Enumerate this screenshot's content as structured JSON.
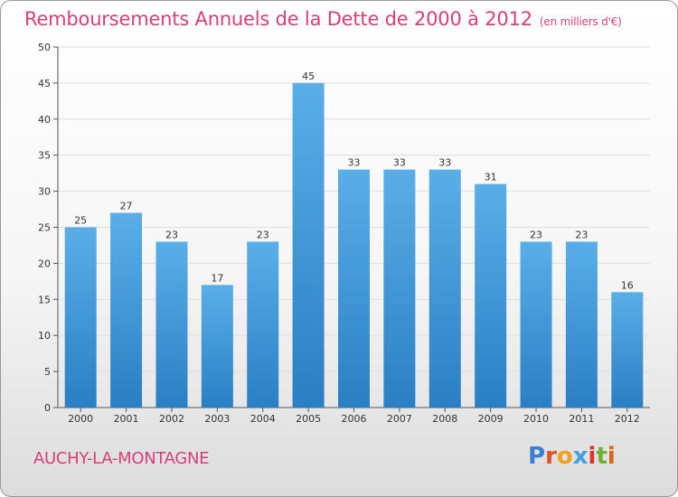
{
  "header": {
    "title": "Remboursements Annuels de la Dette de 2000 à 2012",
    "subtitle": "(en milliers d'€)"
  },
  "footer": {
    "commune": "AUCHY-LA-MONTAGNE",
    "logo": "Proxiti"
  },
  "colors": {
    "title": "#d6407a",
    "bar_top": "#5aaee8",
    "bar_bottom": "#2a7fc4",
    "logo_letters": [
      "#3a7fd0",
      "#e0502a",
      "#f0a020",
      "#40a0e0",
      "#e03030",
      "#70b030",
      "#e06020"
    ]
  },
  "chart_data": {
    "type": "bar",
    "categories": [
      "2000",
      "2001",
      "2002",
      "2003",
      "2004",
      "2005",
      "2006",
      "2007",
      "2008",
      "2009",
      "2010",
      "2011",
      "2012"
    ],
    "values": [
      25,
      27,
      23,
      17,
      23,
      45,
      33,
      33,
      33,
      31,
      23,
      23,
      16
    ],
    "title": "Remboursements Annuels de la Dette de 2000 à 2012",
    "subtitle": "(en milliers d'€)",
    "xlabel": "",
    "ylabel": "",
    "ylim": [
      0,
      50
    ],
    "yticks": [
      0,
      5,
      10,
      15,
      20,
      25,
      30,
      35,
      40,
      45,
      50
    ],
    "grid": true,
    "data_labels": true
  }
}
